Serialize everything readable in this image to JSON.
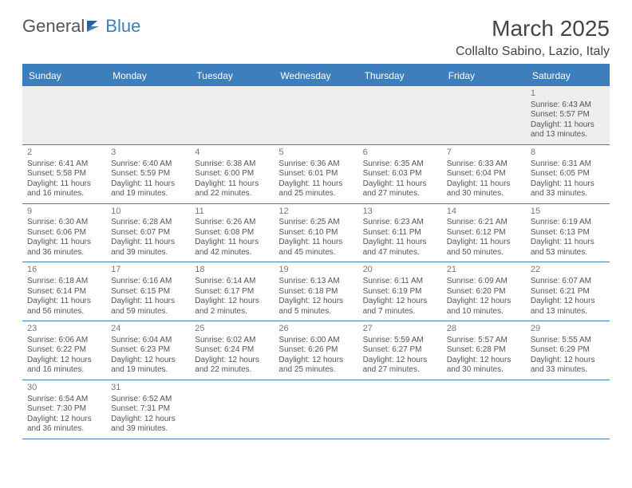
{
  "logo": {
    "general": "General",
    "blue": "Blue"
  },
  "header": {
    "monthTitle": "March 2025",
    "location": "Collalto Sabino, Lazio, Italy"
  },
  "colors": {
    "headerBg": "#3d7ebd",
    "headerText": "#ffffff",
    "rowBorder": "#3d7ebd",
    "firstRowBg": "#eeeeee",
    "bodyText": "#555555"
  },
  "dayHeaders": [
    "Sunday",
    "Monday",
    "Tuesday",
    "Wednesday",
    "Thursday",
    "Friday",
    "Saturday"
  ],
  "weeks": [
    [
      null,
      null,
      null,
      null,
      null,
      null,
      {
        "d": "1",
        "sr": "Sunrise: 6:43 AM",
        "ss": "Sunset: 5:57 PM",
        "dl": "Daylight: 11 hours and 13 minutes."
      }
    ],
    [
      {
        "d": "2",
        "sr": "Sunrise: 6:41 AM",
        "ss": "Sunset: 5:58 PM",
        "dl": "Daylight: 11 hours and 16 minutes."
      },
      {
        "d": "3",
        "sr": "Sunrise: 6:40 AM",
        "ss": "Sunset: 5:59 PM",
        "dl": "Daylight: 11 hours and 19 minutes."
      },
      {
        "d": "4",
        "sr": "Sunrise: 6:38 AM",
        "ss": "Sunset: 6:00 PM",
        "dl": "Daylight: 11 hours and 22 minutes."
      },
      {
        "d": "5",
        "sr": "Sunrise: 6:36 AM",
        "ss": "Sunset: 6:01 PM",
        "dl": "Daylight: 11 hours and 25 minutes."
      },
      {
        "d": "6",
        "sr": "Sunrise: 6:35 AM",
        "ss": "Sunset: 6:03 PM",
        "dl": "Daylight: 11 hours and 27 minutes."
      },
      {
        "d": "7",
        "sr": "Sunrise: 6:33 AM",
        "ss": "Sunset: 6:04 PM",
        "dl": "Daylight: 11 hours and 30 minutes."
      },
      {
        "d": "8",
        "sr": "Sunrise: 6:31 AM",
        "ss": "Sunset: 6:05 PM",
        "dl": "Daylight: 11 hours and 33 minutes."
      }
    ],
    [
      {
        "d": "9",
        "sr": "Sunrise: 6:30 AM",
        "ss": "Sunset: 6:06 PM",
        "dl": "Daylight: 11 hours and 36 minutes."
      },
      {
        "d": "10",
        "sr": "Sunrise: 6:28 AM",
        "ss": "Sunset: 6:07 PM",
        "dl": "Daylight: 11 hours and 39 minutes."
      },
      {
        "d": "11",
        "sr": "Sunrise: 6:26 AM",
        "ss": "Sunset: 6:08 PM",
        "dl": "Daylight: 11 hours and 42 minutes."
      },
      {
        "d": "12",
        "sr": "Sunrise: 6:25 AM",
        "ss": "Sunset: 6:10 PM",
        "dl": "Daylight: 11 hours and 45 minutes."
      },
      {
        "d": "13",
        "sr": "Sunrise: 6:23 AM",
        "ss": "Sunset: 6:11 PM",
        "dl": "Daylight: 11 hours and 47 minutes."
      },
      {
        "d": "14",
        "sr": "Sunrise: 6:21 AM",
        "ss": "Sunset: 6:12 PM",
        "dl": "Daylight: 11 hours and 50 minutes."
      },
      {
        "d": "15",
        "sr": "Sunrise: 6:19 AM",
        "ss": "Sunset: 6:13 PM",
        "dl": "Daylight: 11 hours and 53 minutes."
      }
    ],
    [
      {
        "d": "16",
        "sr": "Sunrise: 6:18 AM",
        "ss": "Sunset: 6:14 PM",
        "dl": "Daylight: 11 hours and 56 minutes."
      },
      {
        "d": "17",
        "sr": "Sunrise: 6:16 AM",
        "ss": "Sunset: 6:15 PM",
        "dl": "Daylight: 11 hours and 59 minutes."
      },
      {
        "d": "18",
        "sr": "Sunrise: 6:14 AM",
        "ss": "Sunset: 6:17 PM",
        "dl": "Daylight: 12 hours and 2 minutes."
      },
      {
        "d": "19",
        "sr": "Sunrise: 6:13 AM",
        "ss": "Sunset: 6:18 PM",
        "dl": "Daylight: 12 hours and 5 minutes."
      },
      {
        "d": "20",
        "sr": "Sunrise: 6:11 AM",
        "ss": "Sunset: 6:19 PM",
        "dl": "Daylight: 12 hours and 7 minutes."
      },
      {
        "d": "21",
        "sr": "Sunrise: 6:09 AM",
        "ss": "Sunset: 6:20 PM",
        "dl": "Daylight: 12 hours and 10 minutes."
      },
      {
        "d": "22",
        "sr": "Sunrise: 6:07 AM",
        "ss": "Sunset: 6:21 PM",
        "dl": "Daylight: 12 hours and 13 minutes."
      }
    ],
    [
      {
        "d": "23",
        "sr": "Sunrise: 6:06 AM",
        "ss": "Sunset: 6:22 PM",
        "dl": "Daylight: 12 hours and 16 minutes."
      },
      {
        "d": "24",
        "sr": "Sunrise: 6:04 AM",
        "ss": "Sunset: 6:23 PM",
        "dl": "Daylight: 12 hours and 19 minutes."
      },
      {
        "d": "25",
        "sr": "Sunrise: 6:02 AM",
        "ss": "Sunset: 6:24 PM",
        "dl": "Daylight: 12 hours and 22 minutes."
      },
      {
        "d": "26",
        "sr": "Sunrise: 6:00 AM",
        "ss": "Sunset: 6:26 PM",
        "dl": "Daylight: 12 hours and 25 minutes."
      },
      {
        "d": "27",
        "sr": "Sunrise: 5:59 AM",
        "ss": "Sunset: 6:27 PM",
        "dl": "Daylight: 12 hours and 27 minutes."
      },
      {
        "d": "28",
        "sr": "Sunrise: 5:57 AM",
        "ss": "Sunset: 6:28 PM",
        "dl": "Daylight: 12 hours and 30 minutes."
      },
      {
        "d": "29",
        "sr": "Sunrise: 5:55 AM",
        "ss": "Sunset: 6:29 PM",
        "dl": "Daylight: 12 hours and 33 minutes."
      }
    ],
    [
      {
        "d": "30",
        "sr": "Sunrise: 6:54 AM",
        "ss": "Sunset: 7:30 PM",
        "dl": "Daylight: 12 hours and 36 minutes."
      },
      {
        "d": "31",
        "sr": "Sunrise: 6:52 AM",
        "ss": "Sunset: 7:31 PM",
        "dl": "Daylight: 12 hours and 39 minutes."
      },
      null,
      null,
      null,
      null,
      null
    ]
  ]
}
